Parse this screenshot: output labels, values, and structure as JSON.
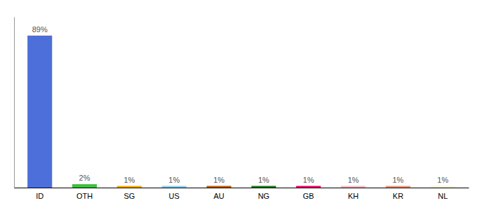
{
  "chart_data": {
    "type": "bar",
    "categories": [
      "ID",
      "OTH",
      "SG",
      "US",
      "AU",
      "NG",
      "GB",
      "KH",
      "KR",
      "NL"
    ],
    "values": [
      89,
      2,
      1,
      1,
      1,
      1,
      1,
      1,
      1,
      1
    ],
    "value_labels": [
      "89%",
      "2%",
      "1%",
      "1%",
      "1%",
      "1%",
      "1%",
      "1%",
      "1%",
      "1%"
    ],
    "colors": [
      "#4D6FD9",
      "#3DBF3D",
      "#FFA500",
      "#87CEEB",
      "#B85C00",
      "#1A7A1A",
      "#E8006A",
      "#FFB6C1",
      "#E8957A",
      "#F5F5DC"
    ],
    "ylim": [
      0,
      100
    ],
    "data_labels": true,
    "tick_labels": "x",
    "grid": false
  }
}
